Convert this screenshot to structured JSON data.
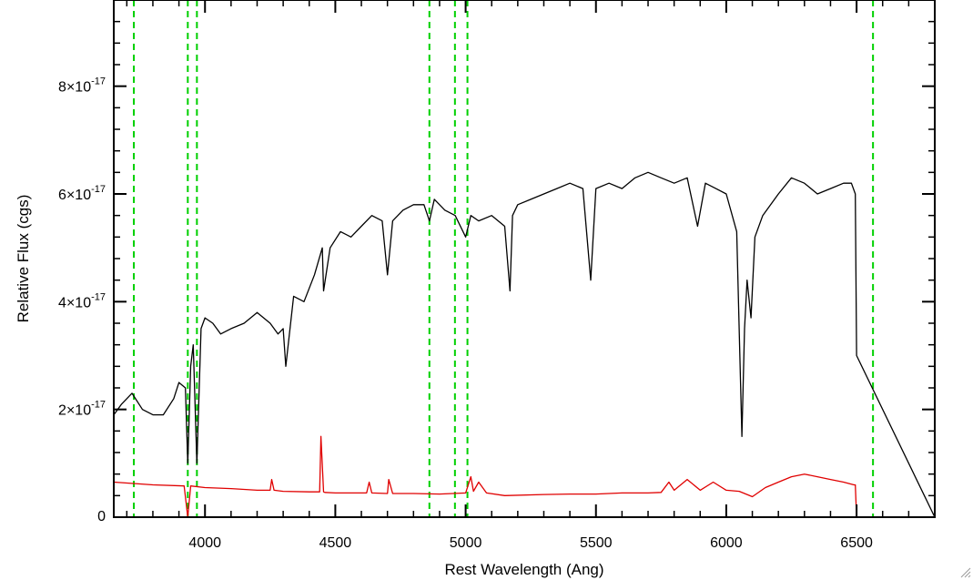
{
  "chart_data": {
    "type": "line",
    "title": "",
    "xlabel": "Rest Wavelength (Ang)",
    "ylabel": "Relative Flux (cgs)",
    "xlim": [
      3650,
      6800
    ],
    "ylim": [
      0,
      9.6e-17
    ],
    "x_ticks": [
      {
        "value": 4000,
        "label": "4000"
      },
      {
        "value": 4500,
        "label": "4500"
      },
      {
        "value": 5000,
        "label": "5000"
      },
      {
        "value": 5500,
        "label": "5500"
      },
      {
        "value": 6000,
        "label": "6000"
      },
      {
        "value": 6500,
        "label": "6500"
      }
    ],
    "y_ticks": [
      {
        "value": 0,
        "mantissa": "0",
        "exponent": ""
      },
      {
        "value": 2e-17,
        "mantissa": "2×10",
        "exponent": "-17"
      },
      {
        "value": 4e-17,
        "mantissa": "4×10",
        "exponent": "-17"
      },
      {
        "value": 6e-17,
        "mantissa": "6×10",
        "exponent": "-17"
      },
      {
        "value": 8e-17,
        "mantissa": "8×10",
        "exponent": "-17"
      }
    ],
    "grid": false,
    "reference_lines": {
      "color": "#00d000",
      "style": "dashed",
      "x": [
        3727,
        3934,
        3969,
        4861,
        4959,
        5007,
        6563
      ]
    },
    "series": [
      {
        "color": "#000000",
        "x": [
          3650,
          3680,
          3720,
          3760,
          3800,
          3840,
          3880,
          3900,
          3925,
          3934,
          3945,
          3955,
          3969,
          3985,
          4000,
          4030,
          4060,
          4100,
          4150,
          4200,
          4250,
          4280,
          4300,
          4310,
          4340,
          4380,
          4420,
          4450,
          4455,
          4480,
          4520,
          4560,
          4600,
          4640,
          4680,
          4700,
          4720,
          4760,
          4800,
          4840,
          4861,
          4880,
          4920,
          4960,
          5000,
          5020,
          5050,
          5100,
          5150,
          5170,
          5180,
          5200,
          5250,
          5300,
          5350,
          5400,
          5450,
          5480,
          5500,
          5550,
          5600,
          5650,
          5700,
          5750,
          5800,
          5850,
          5890,
          5920,
          5960,
          6000,
          6040,
          6060,
          6070,
          6080,
          6095,
          6110,
          6140,
          6200,
          6250,
          6300,
          6350,
          6400,
          6450,
          6480,
          6495,
          6500,
          6800
        ],
        "values": [
          1.9e-17,
          2.1e-17,
          2.3e-17,
          2e-17,
          1.9e-17,
          1.9e-17,
          2.2e-17,
          2.5e-17,
          2.4e-17,
          1e-17,
          2.8e-17,
          3.2e-17,
          1e-17,
          3.5e-17,
          3.7e-17,
          3.6e-17,
          3.4e-17,
          3.5e-17,
          3.6e-17,
          3.8e-17,
          3.6e-17,
          3.4e-17,
          3.5e-17,
          2.8e-17,
          4.1e-17,
          4e-17,
          4.5e-17,
          5e-17,
          4.2e-17,
          5e-17,
          5.3e-17,
          5.2e-17,
          5.4e-17,
          5.6e-17,
          5.5e-17,
          4.5e-17,
          5.5e-17,
          5.7e-17,
          5.8e-17,
          5.8e-17,
          5.5e-17,
          5.9e-17,
          5.7e-17,
          5.6e-17,
          5.2e-17,
          5.6e-17,
          5.5e-17,
          5.6e-17,
          5.4e-17,
          4.2e-17,
          5.6e-17,
          5.8e-17,
          5.9e-17,
          6e-17,
          6.1e-17,
          6.2e-17,
          6.1e-17,
          4.4e-17,
          6.1e-17,
          6.2e-17,
          6.1e-17,
          6.3e-17,
          6.4e-17,
          6.3e-17,
          6.2e-17,
          6.3e-17,
          5.4e-17,
          6.2e-17,
          6.1e-17,
          6e-17,
          5.3e-17,
          1.5e-17,
          3.5e-17,
          4.4e-17,
          3.7e-17,
          5.2e-17,
          5.6e-17,
          6e-17,
          6.3e-17,
          6.2e-17,
          6e-17,
          6.1e-17,
          6.2e-17,
          6.2e-17,
          6e-17,
          3e-17,
          0
        ]
      },
      {
        "color": "#e00000",
        "x": [
          3650,
          3800,
          3920,
          3934,
          3945,
          4000,
          4100,
          4200,
          4250,
          4256,
          4265,
          4300,
          4400,
          4440,
          4445,
          4455,
          4460,
          4500,
          4620,
          4630,
          4640,
          4700,
          4705,
          4720,
          4800,
          4900,
          5000,
          5020,
          5030,
          5050,
          5080,
          5150,
          5300,
          5400,
          5500,
          5600,
          5700,
          5750,
          5780,
          5800,
          5850,
          5900,
          5950,
          6000,
          6050,
          6100,
          6150,
          6200,
          6250,
          6300,
          6350,
          6400,
          6450,
          6490,
          6495,
          6500,
          6800
        ],
        "values": [
          6.5e-18,
          6e-18,
          5.8e-18,
          0,
          5.8e-18,
          5.5e-18,
          5.3e-18,
          5e-18,
          5e-18,
          7e-18,
          5e-18,
          4.8e-18,
          4.7e-18,
          4.7e-18,
          1.5e-17,
          4.7e-18,
          4.6e-18,
          4.5e-18,
          4.5e-18,
          6.5e-18,
          4.5e-18,
          4.4e-18,
          7e-18,
          4.4e-18,
          4.4e-18,
          4.3e-18,
          4.5e-18,
          7.5e-18,
          4.8e-18,
          6.5e-18,
          4.5e-18,
          4e-18,
          4.2e-18,
          4.3e-18,
          4.3e-18,
          4.5e-18,
          4.5e-18,
          4.6e-18,
          6.5e-18,
          5e-18,
          7e-18,
          5e-18,
          6.5e-18,
          5e-18,
          4.8e-18,
          3.8e-18,
          5.5e-18,
          6.5e-18,
          7.5e-18,
          8e-18,
          7.5e-18,
          7e-18,
          6.5e-18,
          6e-18,
          6e-18,
          0,
          0
        ]
      }
    ]
  }
}
